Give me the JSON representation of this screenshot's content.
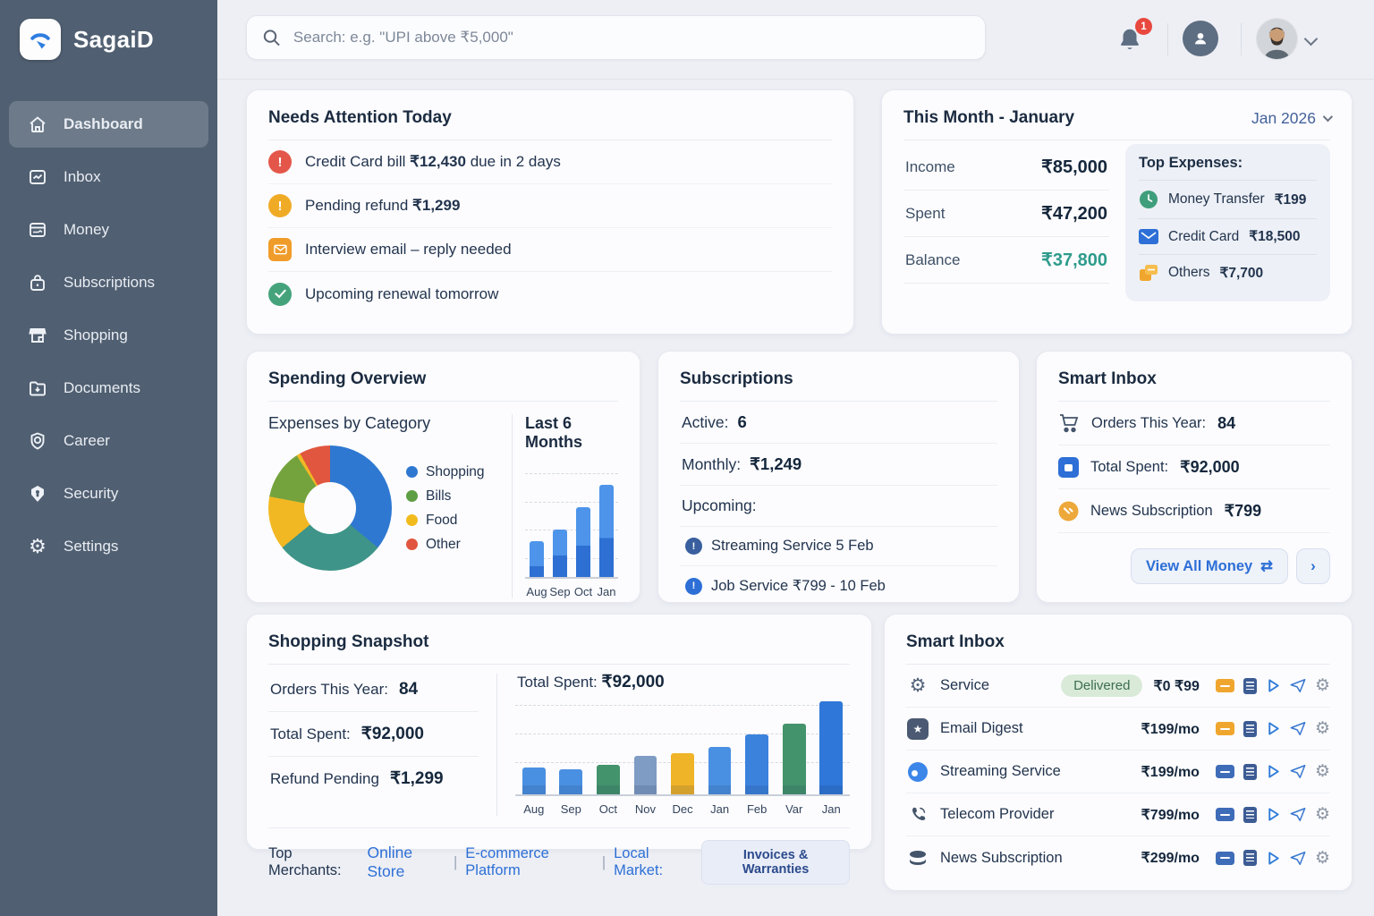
{
  "brand": {
    "name": "SagaiD"
  },
  "sidebar": {
    "items": [
      {
        "label": "Dashboard",
        "active": true
      },
      {
        "label": "Inbox"
      },
      {
        "label": "Money"
      },
      {
        "label": "Subscriptions"
      },
      {
        "label": "Shopping"
      },
      {
        "label": "Documents"
      },
      {
        "label": "Career"
      },
      {
        "label": "Security"
      },
      {
        "label": "Settings"
      }
    ]
  },
  "header": {
    "search_placeholder": "Search: e.g. \"UPI above ₹5,000\"",
    "notification_count": "1"
  },
  "needs_attention": {
    "title": "Needs Attention Today",
    "items": [
      {
        "icon": "alert-red",
        "prefix": "Credit Card bill ",
        "amount": "₹12,430",
        "suffix": " due in 2 days"
      },
      {
        "icon": "alert-yellow",
        "prefix": "Pending refund ",
        "amount": "₹1,299",
        "suffix": ""
      },
      {
        "icon": "mail-orange",
        "prefix": "Interview email – reply needed",
        "amount": "",
        "suffix": ""
      },
      {
        "icon": "check-green",
        "prefix": "Upcoming renewal tomorrow",
        "amount": "",
        "suffix": ""
      }
    ]
  },
  "this_month": {
    "title": "This Month - January",
    "period": "Jan 2026",
    "rows": [
      {
        "label": "Income",
        "value": "₹85,000"
      },
      {
        "label": "Spent",
        "value": "₹47,200"
      },
      {
        "label": "Balance",
        "value": "₹37,800"
      }
    ],
    "top_expenses": {
      "title": "Top Expenses:",
      "items": [
        {
          "icon": "clock-green",
          "label": "Money Transfer",
          "value": "₹199"
        },
        {
          "icon": "mail-blue",
          "label": "Credit Card",
          "value": "₹18,500"
        },
        {
          "icon": "cards-orange",
          "label": "Others",
          "value": "₹7,700"
        }
      ]
    }
  },
  "spending_overview": {
    "title": "Spending Overview",
    "donut_title": "Expenses by Category",
    "bar_title": "Last 6 Months"
  },
  "subscriptions": {
    "title": "Subscriptions",
    "active_label": "Active:",
    "active_value": "6",
    "monthly_label": "Monthly:",
    "monthly_value": "₹1,249",
    "upcoming_label": "Upcoming:",
    "upcoming": [
      {
        "text": "Streaming Service 5 Feb"
      },
      {
        "text": "Job Service ₹799 - 10 Feb"
      }
    ]
  },
  "smart_inbox_summary": {
    "title": "Smart Inbox",
    "rows": [
      {
        "icon": "cart",
        "label": "Orders This Year:",
        "value": "84"
      },
      {
        "icon": "wallet-blue",
        "label": "Total Spent:",
        "value": "₹92,000"
      },
      {
        "icon": "coin-orange",
        "label": "News Subscription",
        "value": "₹799"
      }
    ],
    "view_all_label": "View All Money",
    "view_all_icon": "⇄",
    "chevron": "›"
  },
  "shopping_snapshot": {
    "title": "Shopping Snapshot",
    "stats": [
      {
        "label": "Orders This Year:",
        "value": "84"
      },
      {
        "label": "Total Spent:",
        "value": "₹92,000"
      },
      {
        "label": "Refund Pending",
        "value": "₹1,299"
      }
    ],
    "chart_label": "Total Spent:",
    "chart_value": "₹92,000",
    "merchants_label": "Top Merchants:",
    "merchants": [
      "Online Store",
      "E-commerce Platform",
      "Local Market:"
    ],
    "separator": "|",
    "button_label": "Invoices & Warranties"
  },
  "smart_inbox_table": {
    "title": "Smart Inbox",
    "rows": [
      {
        "icon": "gear",
        "name": "Service",
        "badge": "Delivered",
        "price": "₹0 ₹99",
        "card_color": "orange"
      },
      {
        "icon": "star-square",
        "name": "Email Digest",
        "badge": "",
        "price": "₹199/mo",
        "card_color": "orange"
      },
      {
        "icon": "circle-blue",
        "name": "Streaming Service",
        "badge": "",
        "price": "₹199/mo",
        "card_color": "blue"
      },
      {
        "icon": "phone",
        "name": "Telecom Provider",
        "badge": "",
        "price": "₹799/mo",
        "card_color": "blue"
      },
      {
        "icon": "layers",
        "name": "News Subscription",
        "badge": "",
        "price": "₹299/mo",
        "card_color": "blue"
      }
    ]
  },
  "colors": {
    "accent_blue": "#2d6fd6",
    "balance_teal": "#2e9c8c",
    "alert_red": "#e4564a",
    "warn_yellow": "#f0ab26",
    "ok_green": "#45a37c",
    "card_orange": "#f0a62e",
    "card_blue": "#3f6cb8"
  },
  "chart_data": [
    {
      "type": "pie",
      "title": "Expenses by Category",
      "legend": [
        {
          "label": "Shopping",
          "color": "#2e78d2"
        },
        {
          "label": "Bills",
          "color": "#5f9e44"
        },
        {
          "label": "Food",
          "color": "#f2bb1d"
        },
        {
          "label": "Other",
          "color": "#e0563f"
        }
      ],
      "segments": [
        {
          "label": "Shopping",
          "color": "#2e78d2",
          "percent": 36
        },
        {
          "label": "Bills",
          "color": "#3e9488",
          "percent": 28
        },
        {
          "label": "Food",
          "color": "#f2b824",
          "percent": 14
        },
        {
          "label": "Bills",
          "color": "#74a33e",
          "percent": 13
        },
        {
          "label": "Food",
          "color": "#f2b824",
          "percent": 1
        },
        {
          "label": "Other",
          "color": "#e0563f",
          "percent": 8
        }
      ],
      "hole": 0.42,
      "legend_position": "right"
    },
    {
      "type": "bar",
      "title": "Last 6 Months",
      "categories": [
        "Aug",
        "Sep",
        "Oct",
        "Jan"
      ],
      "values": [
        32,
        42,
        62,
        82
      ],
      "ylim": [
        0,
        100
      ],
      "grid": "dashed",
      "color_top": "#4d94ea",
      "color_bottom": "#2d6fd2",
      "split": [
        0.3,
        0.45,
        0.45,
        0.42
      ]
    },
    {
      "type": "bar",
      "title": "Total Spent ₹92,000 — monthly",
      "categories": [
        "Aug",
        "Sep",
        "Oct",
        "Nov",
        "Dec",
        "Jan",
        "Feb",
        "Var",
        "Jan"
      ],
      "values": [
        28,
        26,
        31,
        41,
        43,
        50,
        63,
        75,
        98
      ],
      "ylim": [
        0,
        100
      ],
      "grid": "dashed",
      "colors": [
        "#4a90e2",
        "#4a90e2",
        "#43936c",
        "#7e9cc4",
        "#f0b429",
        "#4a90e2",
        "#3b82dd",
        "#43936c",
        "#2f77d8"
      ]
    }
  ]
}
